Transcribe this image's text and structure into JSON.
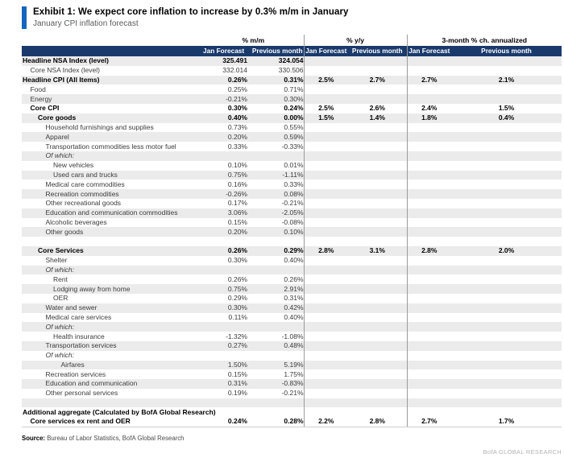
{
  "exhibit": {
    "title": "Exhibit 1: We expect core inflation to increase by 0.3% m/m in January",
    "subtitle": "January CPI inflation forecast"
  },
  "colors": {
    "navy": "#1a3a6c",
    "accent_blue": "#1366bd",
    "stripe": "#ebebeb",
    "divider": "#9b9b9b"
  },
  "table": {
    "group_headers": [
      {
        "label": "% m/m"
      },
      {
        "label": "% y/y"
      },
      {
        "label": "3-month % ch. annualized"
      }
    ],
    "column_headers": [
      "Jan Forecast",
      "Previous month",
      "Jan Forecast",
      "Previous month",
      "Jan Forecast",
      "Previous month"
    ],
    "rows": [
      {
        "label": "Headline NSA Index (level)",
        "indent": 0,
        "bold": true,
        "shaded": true,
        "values": [
          "325.491",
          "324.054",
          "",
          "",
          "",
          ""
        ]
      },
      {
        "label": "Core NSA Index (level)",
        "indent": 1,
        "shaded": false,
        "values": [
          "332.014",
          "330.506",
          "",
          "",
          "",
          ""
        ]
      },
      {
        "label": "Headline CPI (All Items)",
        "indent": 0,
        "bold": true,
        "shaded": true,
        "values": [
          "0.26%",
          "0.31%",
          "2.5%",
          "2.7%",
          "2.7%",
          "2.1%"
        ]
      },
      {
        "label": "Food",
        "indent": 1,
        "shaded": false,
        "values": [
          "0.25%",
          "0.71%",
          "",
          "",
          "",
          ""
        ]
      },
      {
        "label": "Energy",
        "indent": 1,
        "shaded": true,
        "values": [
          "-0.21%",
          "0.30%",
          "",
          "",
          "",
          ""
        ]
      },
      {
        "label": "Core CPI",
        "indent": 1,
        "bold": true,
        "shaded": false,
        "values": [
          "0.30%",
          "0.24%",
          "2.5%",
          "2.6%",
          "2.4%",
          "1.5%"
        ]
      },
      {
        "label": "Core goods",
        "indent": 2,
        "bold": true,
        "shaded": true,
        "values": [
          "0.40%",
          "0.00%",
          "1.5%",
          "1.4%",
          "1.8%",
          "0.4%"
        ]
      },
      {
        "label": "Household furnishings and supplies",
        "indent": 3,
        "shaded": false,
        "values": [
          "0.73%",
          "0.55%",
          "",
          "",
          "",
          ""
        ]
      },
      {
        "label": "Apparel",
        "indent": 3,
        "shaded": true,
        "values": [
          "0.20%",
          "0.59%",
          "",
          "",
          "",
          ""
        ]
      },
      {
        "label": "Transportation commodities less motor fuel",
        "indent": 3,
        "shaded": false,
        "values": [
          "0.33%",
          "-0.33%",
          "",
          "",
          "",
          ""
        ]
      },
      {
        "label": "Of which:",
        "indent": 3,
        "italic": true,
        "shaded": true,
        "values": [
          "",
          "",
          "",
          "",
          "",
          ""
        ]
      },
      {
        "label": "New vehicles",
        "indent": 4,
        "shaded": false,
        "values": [
          "0.10%",
          "0.01%",
          "",
          "",
          "",
          ""
        ]
      },
      {
        "label": "Used cars and trucks",
        "indent": 4,
        "shaded": true,
        "values": [
          "0.75%",
          "-1.11%",
          "",
          "",
          "",
          ""
        ]
      },
      {
        "label": "Medical care commodities",
        "indent": 3,
        "shaded": false,
        "values": [
          "0.16%",
          "0.33%",
          "",
          "",
          "",
          ""
        ]
      },
      {
        "label": "Recreation commodities",
        "indent": 3,
        "shaded": true,
        "values": [
          "-0.26%",
          "0.08%",
          "",
          "",
          "",
          ""
        ]
      },
      {
        "label": "Other recreational goods",
        "indent": 3,
        "shaded": false,
        "values": [
          "0.17%",
          "-0.21%",
          "",
          "",
          "",
          ""
        ]
      },
      {
        "label": "Education and communication commodities",
        "indent": 3,
        "shaded": true,
        "values": [
          "3.06%",
          "-2.05%",
          "",
          "",
          "",
          ""
        ]
      },
      {
        "label": "Alcoholic beverages",
        "indent": 3,
        "shaded": false,
        "values": [
          "0.15%",
          "-0.08%",
          "",
          "",
          "",
          ""
        ]
      },
      {
        "label": "Other goods",
        "indent": 3,
        "shaded": true,
        "values": [
          "0.20%",
          "0.10%",
          "",
          "",
          "",
          ""
        ]
      },
      {
        "label": "",
        "blank": true,
        "shaded": false,
        "values": [
          "",
          "",
          "",
          "",
          "",
          ""
        ]
      },
      {
        "label": "Core Services",
        "indent": 2,
        "bold": true,
        "shaded": true,
        "values": [
          "0.26%",
          "0.29%",
          "2.8%",
          "3.1%",
          "2.8%",
          "2.0%"
        ]
      },
      {
        "label": "Shelter",
        "indent": 3,
        "shaded": false,
        "values": [
          "0.30%",
          "0.40%",
          "",
          "",
          "",
          ""
        ]
      },
      {
        "label": "Of which:",
        "indent": 3,
        "italic": true,
        "shaded": true,
        "values": [
          "",
          "",
          "",
          "",
          "",
          ""
        ]
      },
      {
        "label": "Rent",
        "indent": 4,
        "shaded": false,
        "values": [
          "0.26%",
          "0.26%",
          "",
          "",
          "",
          ""
        ]
      },
      {
        "label": "Lodging away from home",
        "indent": 4,
        "shaded": true,
        "values": [
          "0.75%",
          "2.91%",
          "",
          "",
          "",
          ""
        ]
      },
      {
        "label": "OER",
        "indent": 4,
        "shaded": false,
        "values": [
          "0.29%",
          "0.31%",
          "",
          "",
          "",
          ""
        ]
      },
      {
        "label": "Water and sewer",
        "indent": 3,
        "shaded": true,
        "values": [
          "0.30%",
          "0.42%",
          "",
          "",
          "",
          ""
        ]
      },
      {
        "label": "Medical care services",
        "indent": 3,
        "shaded": false,
        "values": [
          "0.11%",
          "0.40%",
          "",
          "",
          "",
          ""
        ]
      },
      {
        "label": "Of which:",
        "indent": 3,
        "italic": true,
        "shaded": true,
        "values": [
          "",
          "",
          "",
          "",
          "",
          ""
        ]
      },
      {
        "label": "Health insurance",
        "indent": 4,
        "shaded": false,
        "values": [
          "-1.32%",
          "-1.08%",
          "",
          "",
          "",
          ""
        ]
      },
      {
        "label": "Transportation services",
        "indent": 3,
        "shaded": true,
        "values": [
          "0.27%",
          "0.48%",
          "",
          "",
          "",
          ""
        ]
      },
      {
        "label": "Of which:",
        "indent": 3,
        "italic": true,
        "shaded": false,
        "values": [
          "",
          "",
          "",
          "",
          "",
          ""
        ]
      },
      {
        "label": "Airfares",
        "indent": 5,
        "shaded": true,
        "values": [
          "1.50%",
          "5.19%",
          "",
          "",
          "",
          ""
        ]
      },
      {
        "label": "Recreation services",
        "indent": 3,
        "shaded": false,
        "values": [
          "0.15%",
          "1.75%",
          "",
          "",
          "",
          ""
        ]
      },
      {
        "label": "Education and communication",
        "indent": 3,
        "shaded": true,
        "values": [
          "0.31%",
          "-0.83%",
          "",
          "",
          "",
          ""
        ]
      },
      {
        "label": "Other personal services",
        "indent": 3,
        "shaded": false,
        "values": [
          "0.19%",
          "-0.21%",
          "",
          "",
          "",
          ""
        ]
      },
      {
        "label": "",
        "blank": true,
        "shaded": true,
        "values": [
          "",
          "",
          "",
          "",
          "",
          ""
        ]
      },
      {
        "label": "Additional aggregate (Calculated by BofA Global Research)",
        "indent": 0,
        "bold": true,
        "shaded": false,
        "values": [
          "",
          "",
          "",
          "",
          "",
          ""
        ]
      },
      {
        "label": "Core services ex rent and OER",
        "indent": 1,
        "bold": true,
        "shaded": false,
        "values": [
          "0.24%",
          "0.28%",
          "2.2%",
          "2.8%",
          "2.7%",
          "1.7%"
        ]
      }
    ]
  },
  "source": {
    "label": "Source:",
    "text": " Bureau of Labor Statistics, BofA Global Research"
  },
  "footer": {
    "brand": "BofA GLOBAL RESEARCH"
  }
}
